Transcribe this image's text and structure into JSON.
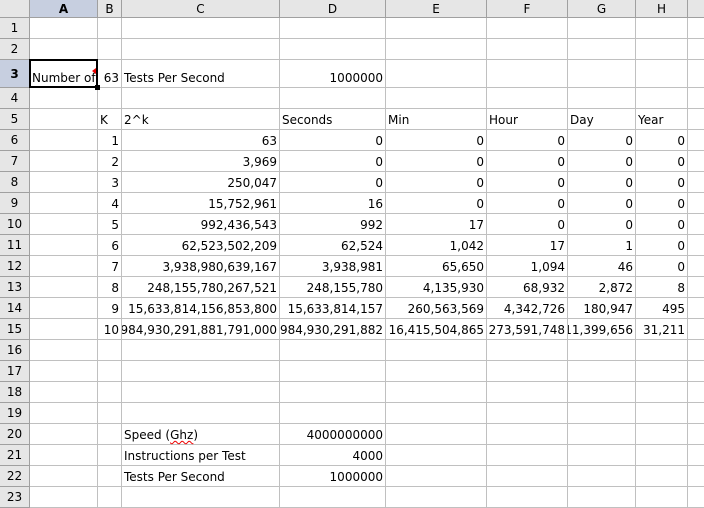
{
  "columns": [
    "A",
    "B",
    "C",
    "D",
    "E",
    "F",
    "G",
    "H"
  ],
  "selected_cell": "A3",
  "rows": [
    {
      "n": "1",
      "c": [
        "",
        "",
        "",
        "",
        "",
        "",
        "",
        ""
      ]
    },
    {
      "n": "2",
      "c": [
        "",
        "",
        "",
        "",
        "",
        "",
        "",
        ""
      ]
    },
    {
      "n": "3",
      "c": [
        "Number of",
        "63",
        "Tests Per Second",
        "1000000",
        "",
        "",
        "",
        ""
      ]
    },
    {
      "n": "4",
      "c": [
        "",
        "",
        "",
        "",
        "",
        "",
        "",
        ""
      ]
    },
    {
      "n": "5",
      "c": [
        "",
        "K",
        "2^k",
        "Seconds",
        "Min",
        "Hour",
        "Day",
        "Year"
      ]
    },
    {
      "n": "6",
      "c": [
        "",
        "1",
        "63",
        "0",
        "0",
        "0",
        "0",
        "0"
      ]
    },
    {
      "n": "7",
      "c": [
        "",
        "2",
        "3,969",
        "0",
        "0",
        "0",
        "0",
        "0"
      ]
    },
    {
      "n": "8",
      "c": [
        "",
        "3",
        "250,047",
        "0",
        "0",
        "0",
        "0",
        "0"
      ]
    },
    {
      "n": "9",
      "c": [
        "",
        "4",
        "15,752,961",
        "16",
        "0",
        "0",
        "0",
        "0"
      ]
    },
    {
      "n": "10",
      "c": [
        "",
        "5",
        "992,436,543",
        "992",
        "17",
        "0",
        "0",
        "0"
      ]
    },
    {
      "n": "11",
      "c": [
        "",
        "6",
        "62,523,502,209",
        "62,524",
        "1,042",
        "17",
        "1",
        "0"
      ]
    },
    {
      "n": "12",
      "c": [
        "",
        "7",
        "3,938,980,639,167",
        "3,938,981",
        "65,650",
        "1,094",
        "46",
        "0"
      ]
    },
    {
      "n": "13",
      "c": [
        "",
        "8",
        "248,155,780,267,521",
        "248,155,780",
        "4,135,930",
        "68,932",
        "2,872",
        "8"
      ]
    },
    {
      "n": "14",
      "c": [
        "",
        "9",
        "15,633,814,156,853,800",
        "15,633,814,157",
        "260,563,569",
        "4,342,726",
        "180,947",
        "495"
      ]
    },
    {
      "n": "15",
      "c": [
        "",
        "10",
        "984,930,291,881,791,000",
        "984,930,291,882",
        "16,415,504,865",
        "273,591,748",
        "11,399,656",
        "31,211"
      ]
    },
    {
      "n": "16",
      "c": [
        "",
        "",
        "",
        "",
        "",
        "",
        "",
        ""
      ]
    },
    {
      "n": "17",
      "c": [
        "",
        "",
        "",
        "",
        "",
        "",
        "",
        ""
      ]
    },
    {
      "n": "18",
      "c": [
        "",
        "",
        "",
        "",
        "",
        "",
        "",
        ""
      ]
    },
    {
      "n": "19",
      "c": [
        "",
        "",
        "",
        "",
        "",
        "",
        "",
        ""
      ]
    },
    {
      "n": "20",
      "c": [
        "",
        "",
        "Speed (Ghz)",
        "4000000000",
        "",
        "",
        "",
        ""
      ]
    },
    {
      "n": "21",
      "c": [
        "",
        "",
        "Instructions per Test",
        "4000",
        "",
        "",
        "",
        ""
      ]
    },
    {
      "n": "22",
      "c": [
        "",
        "",
        "Tests Per Second",
        "1000000",
        "",
        "",
        "",
        ""
      ]
    },
    {
      "n": "23",
      "c": [
        "",
        "",
        "",
        "",
        "",
        "",
        "",
        ""
      ]
    }
  ]
}
